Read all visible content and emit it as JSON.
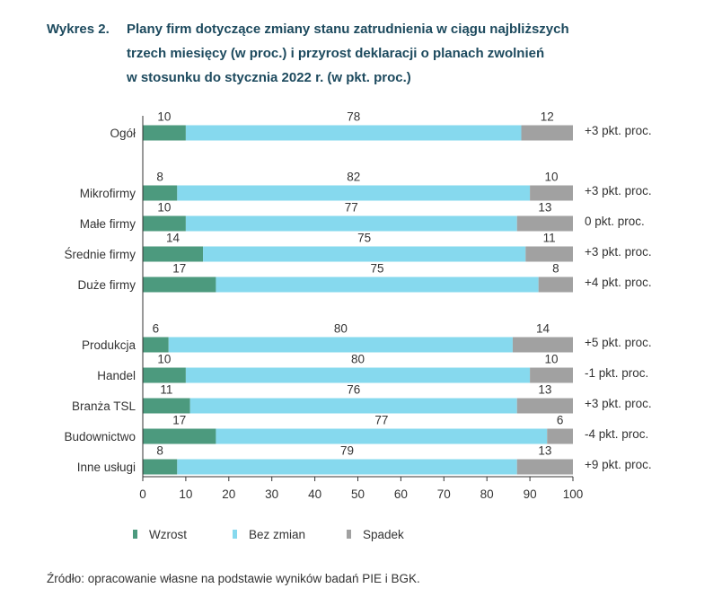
{
  "title": {
    "prefix": "Wykres 2.",
    "lines": [
      "Plany firm dotyczące zmiany stanu zatrudnienia w ciągu najbliższych",
      "trzech miesięcy (w proc.) i przyrost deklaracji o planach zwolnień",
      "w stosunku do stycznia 2022 r. (w pkt. proc.)"
    ]
  },
  "colors": {
    "wzrost": "#4c9a7e",
    "bez_zmian": "#86d9ee",
    "spadek": "#a1a1a1",
    "title": "#1d4a5e",
    "text": "#333333",
    "axis": "#333333"
  },
  "chart_data": {
    "type": "bar",
    "orientation": "horizontal",
    "stacked": true,
    "xlim": [
      0,
      100
    ],
    "xticks": [
      "0",
      "10",
      "20",
      "30",
      "40",
      "50",
      "60",
      "70",
      "80",
      "90",
      "100"
    ],
    "categories": [
      "Ogół",
      "Mikrofirmy",
      "Małe firmy",
      "Średnie firmy",
      "Duże firmy",
      "Produkcja",
      "Handel",
      "Branża TSL",
      "Budownictwo",
      "Inne usługi"
    ],
    "groups": [
      [
        0
      ],
      [
        1,
        2,
        3,
        4
      ],
      [
        5,
        6,
        7,
        8,
        9
      ]
    ],
    "series": [
      {
        "name": "Wzrost",
        "values": [
          10,
          8,
          10,
          14,
          17,
          6,
          10,
          11,
          17,
          8
        ]
      },
      {
        "name": "Bez zmian",
        "values": [
          78,
          82,
          77,
          75,
          75,
          80,
          80,
          76,
          77,
          79
        ]
      },
      {
        "name": "Spadek",
        "values": [
          12,
          10,
          13,
          11,
          8,
          14,
          10,
          13,
          6,
          13
        ]
      }
    ],
    "annotations": [
      "+3 pkt. proc.",
      "+3 pkt. proc.",
      "0 pkt. proc.",
      "+3 pkt. proc.",
      "+4 pkt. proc.",
      "+5 pkt. proc.",
      "-1 pkt. proc.",
      "+3 pkt. proc.",
      "-4 pkt. proc.",
      "+9 pkt. proc."
    ],
    "legend_position": "bottom"
  },
  "source": "Źródło: opracowanie własne na podstawie wyników badań PIE i BGK."
}
